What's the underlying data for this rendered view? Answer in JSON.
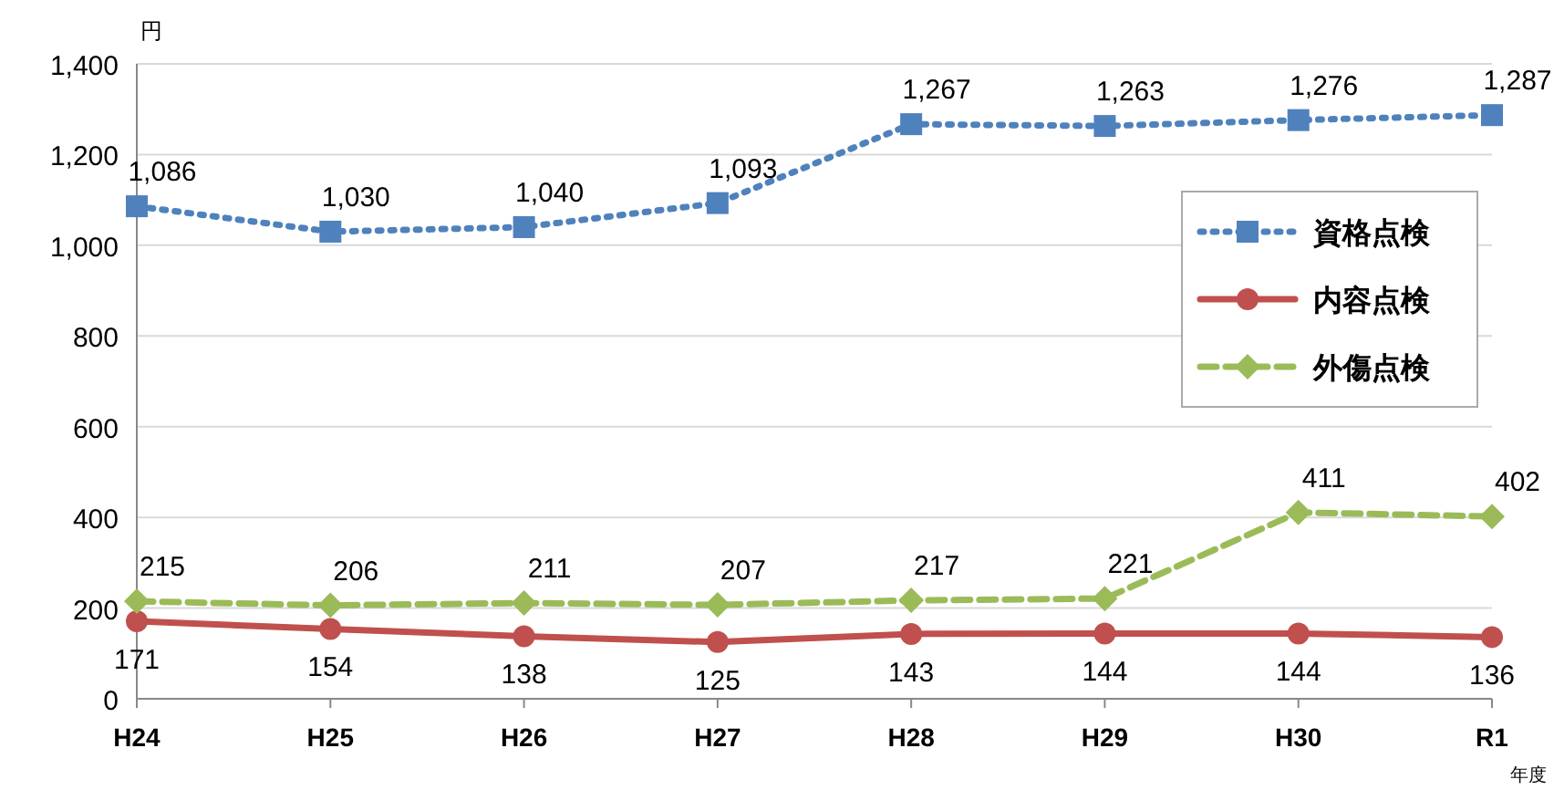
{
  "chart_data": {
    "type": "line",
    "ylabel": "円",
    "xlabel": "年度",
    "categories": [
      "H24",
      "H25",
      "H26",
      "H27",
      "H28",
      "H29",
      "H30",
      "R1"
    ],
    "ylim": [
      0,
      1400
    ],
    "yticks": [
      0,
      200,
      400,
      600,
      800,
      {
        "value": 1000,
        "label": "1,000"
      },
      {
        "value": 1200,
        "label": "1,200"
      },
      {
        "value": 1400,
        "label": "1,400"
      }
    ],
    "grid": "y",
    "legend": "right",
    "series": [
      {
        "name": "資格点検",
        "color": "#4f81bd",
        "marker": "square",
        "line_style": "dotted",
        "values": [
          1086,
          1030,
          1040,
          1093,
          1267,
          1263,
          1276,
          1287
        ],
        "value_labels": [
          "1,086",
          "1,030",
          "1,040",
          "1,093",
          "1,267",
          "1,263",
          "1,276",
          "1,287"
        ]
      },
      {
        "name": "内容点検",
        "color": "#c0504d",
        "marker": "circle",
        "line_style": "solid",
        "values": [
          171,
          154,
          138,
          125,
          143,
          144,
          144,
          136
        ],
        "value_labels": [
          "171",
          "154",
          "138",
          "125",
          "143",
          "144",
          "144",
          "136"
        ]
      },
      {
        "name": "外傷点検",
        "color": "#9bbb59",
        "marker": "diamond",
        "line_style": "dashed",
        "values": [
          215,
          206,
          211,
          207,
          217,
          221,
          411,
          402
        ],
        "value_labels": [
          "215",
          "206",
          "211",
          "207",
          "217",
          "221",
          "411",
          "402"
        ]
      }
    ]
  }
}
